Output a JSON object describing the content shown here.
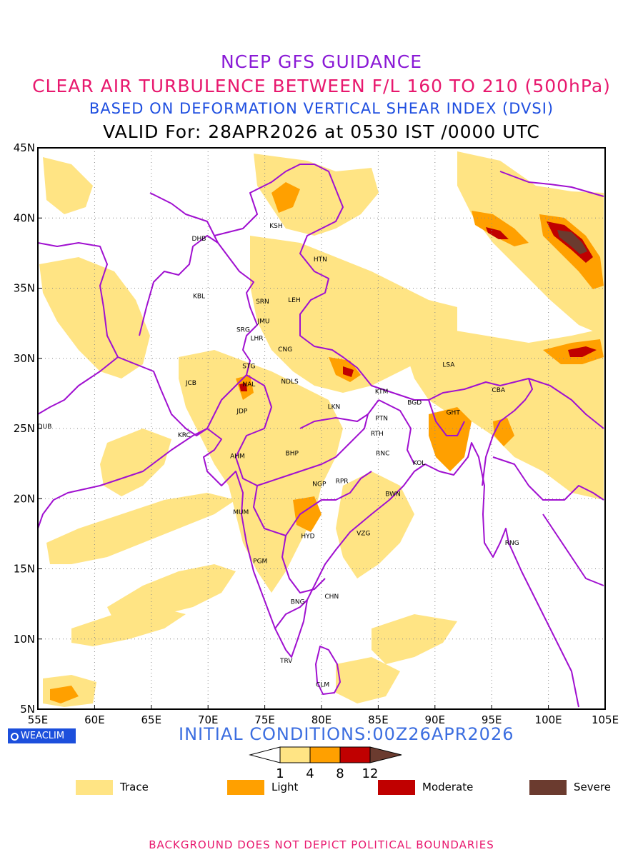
{
  "header": {
    "title_1": "NCEP GFS GUIDANCE",
    "title_2": "CLEAR AIR TURBULENCE BETWEEN F/L 160 TO 210 (500hPa)",
    "title_3": "BASED ON DEFORMATION VERTICAL SHEAR INDEX (DVSI)",
    "title_4": "VALID For: 28APR2026 at 0530 IST /0000 UTC"
  },
  "colors": {
    "title_1": "#8a1ad6",
    "title_2": "#e8186e",
    "title_3": "#1f4fe0",
    "title_4": "#000000",
    "boundary": "#a010d0",
    "trace": "#ffe484",
    "light": "#ffa000",
    "moderate": "#c00000",
    "severe": "#6b3b2f",
    "grid": "#888888",
    "logo_bg": "#1c4fdc",
    "init": "#3c6ee0",
    "footer": "#e8186e"
  },
  "map": {
    "lon_range": [
      55,
      105
    ],
    "lat_range": [
      5,
      45
    ],
    "x_ticks": [
      "55E",
      "60E",
      "65E",
      "70E",
      "75E",
      "80E",
      "85E",
      "90E",
      "95E",
      "100E",
      "105E"
    ],
    "y_ticks": [
      "5N",
      "10N",
      "15N",
      "20N",
      "25N",
      "30N",
      "35N",
      "40N",
      "45N"
    ],
    "x_tick_values": [
      55,
      60,
      65,
      70,
      75,
      80,
      85,
      90,
      95,
      100,
      105
    ],
    "y_tick_values": [
      5,
      10,
      15,
      20,
      25,
      30,
      35,
      40,
      45
    ],
    "stations": [
      {
        "code": "KSH",
        "lon": 76.0,
        "lat": 39.5
      },
      {
        "code": "DHB",
        "lon": 69.2,
        "lat": 38.6
      },
      {
        "code": "HTN",
        "lon": 79.9,
        "lat": 37.1
      },
      {
        "code": "KBL",
        "lon": 69.2,
        "lat": 34.5
      },
      {
        "code": "SRN",
        "lon": 74.8,
        "lat": 34.1
      },
      {
        "code": "LEH",
        "lon": 77.6,
        "lat": 34.2
      },
      {
        "code": "JMU",
        "lon": 74.9,
        "lat": 32.7
      },
      {
        "code": "SRG",
        "lon": 73.1,
        "lat": 32.1
      },
      {
        "code": "LHR",
        "lon": 74.3,
        "lat": 31.5
      },
      {
        "code": "CNG",
        "lon": 76.8,
        "lat": 30.7
      },
      {
        "code": "STG",
        "lon": 73.6,
        "lat": 29.5
      },
      {
        "code": "JCB",
        "lon": 68.5,
        "lat": 28.3
      },
      {
        "code": "NAL",
        "lon": 73.6,
        "lat": 28.2
      },
      {
        "code": "NDLS",
        "lon": 77.2,
        "lat": 28.4
      },
      {
        "code": "LSA",
        "lon": 91.2,
        "lat": 29.6
      },
      {
        "code": "KTM",
        "lon": 85.3,
        "lat": 27.7
      },
      {
        "code": "BGD",
        "lon": 88.2,
        "lat": 26.9
      },
      {
        "code": "CBA",
        "lon": 95.6,
        "lat": 27.8
      },
      {
        "code": "JDP",
        "lon": 73.0,
        "lat": 26.3
      },
      {
        "code": "LKN",
        "lon": 81.1,
        "lat": 26.6
      },
      {
        "code": "PTN",
        "lon": 85.3,
        "lat": 25.8
      },
      {
        "code": "GHT",
        "lon": 91.6,
        "lat": 26.2
      },
      {
        "code": "DUB",
        "lon": 55.6,
        "lat": 25.2
      },
      {
        "code": "KRC",
        "lon": 67.9,
        "lat": 24.6
      },
      {
        "code": "RTH",
        "lon": 84.9,
        "lat": 24.7
      },
      {
        "code": "AHM",
        "lon": 72.6,
        "lat": 23.1
      },
      {
        "code": "BHP",
        "lon": 77.4,
        "lat": 23.3
      },
      {
        "code": "RNC",
        "lon": 85.4,
        "lat": 23.3
      },
      {
        "code": "KOL",
        "lon": 88.6,
        "lat": 22.6
      },
      {
        "code": "NGP",
        "lon": 79.8,
        "lat": 21.1
      },
      {
        "code": "RPR",
        "lon": 81.8,
        "lat": 21.3
      },
      {
        "code": "BWN",
        "lon": 86.3,
        "lat": 20.4
      },
      {
        "code": "MUM",
        "lon": 72.9,
        "lat": 19.1
      },
      {
        "code": "HYD",
        "lon": 78.8,
        "lat": 17.4
      },
      {
        "code": "VZG",
        "lon": 83.7,
        "lat": 17.6
      },
      {
        "code": "RNG",
        "lon": 96.8,
        "lat": 16.9
      },
      {
        "code": "PGM",
        "lon": 74.6,
        "lat": 15.6
      },
      {
        "code": "CHN",
        "lon": 80.9,
        "lat": 13.1
      },
      {
        "code": "BNG",
        "lon": 77.9,
        "lat": 12.7
      },
      {
        "code": "TRV",
        "lon": 76.9,
        "lat": 8.5
      },
      {
        "code": "CLM",
        "lon": 80.1,
        "lat": 6.8
      }
    ]
  },
  "logo_text": "WEACLIM",
  "initial_conditions": "INITIAL CONDITIONS:00Z26APR2026",
  "colorbar": {
    "thresholds": [
      1,
      4,
      8,
      12
    ],
    "threshold_labels": [
      "1",
      "4",
      "8",
      "12"
    ]
  },
  "legend": [
    {
      "label": "Trace",
      "color_key": "trace"
    },
    {
      "label": "Light",
      "color_key": "light"
    },
    {
      "label": "Moderate",
      "color_key": "moderate"
    },
    {
      "label": "Severe",
      "color_key": "severe"
    }
  ],
  "footer": "BACKGROUND DOES NOT DEPICT POLITICAL BOUNDARIES"
}
